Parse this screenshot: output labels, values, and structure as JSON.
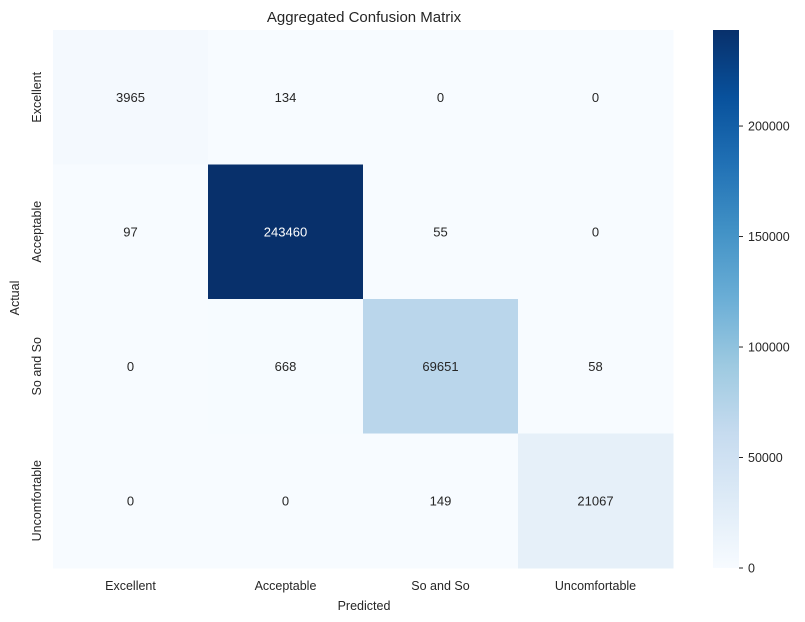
{
  "chart_data": {
    "type": "heatmap",
    "title": "Aggregated Confusion Matrix",
    "xlabel": "Predicted",
    "ylabel": "Actual",
    "x_categories": [
      "Excellent",
      "Acceptable",
      "So and So",
      "Uncomfortable"
    ],
    "y_categories": [
      "Excellent",
      "Acceptable",
      "So and So",
      "Uncomfortable"
    ],
    "matrix": [
      [
        3965,
        134,
        0,
        0
      ],
      [
        97,
        243460,
        55,
        0
      ],
      [
        0,
        668,
        69651,
        58
      ],
      [
        0,
        0,
        149,
        21067
      ]
    ],
    "colorbar": {
      "min": 0,
      "max": 243460,
      "ticks": [
        0,
        50000,
        100000,
        150000,
        200000
      ]
    },
    "colormap": "Blues",
    "colors": {
      "low": "#f7fbff",
      "high": "#08306b",
      "text_dark": "#262626",
      "text_light": "#ffffff"
    },
    "grid": false,
    "legend": "colorbar-right"
  }
}
